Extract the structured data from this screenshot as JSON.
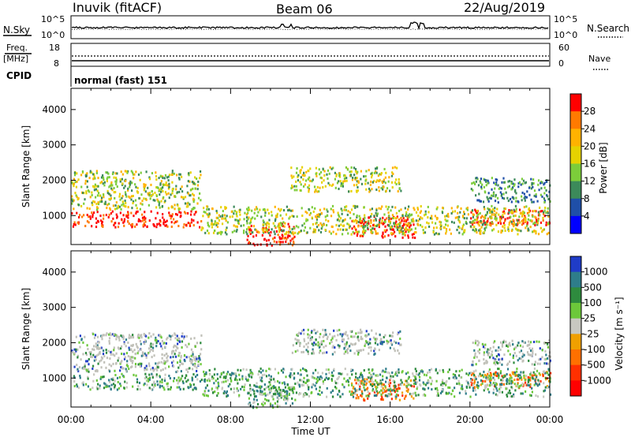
{
  "header": {
    "station": "Inuvik (fitACF)",
    "beam": "Beam 06",
    "date": "22/Aug/2019"
  },
  "strip_labels": {
    "nsky": "N.Sky",
    "nsearch": "N.Search",
    "freq_line1": "Freq.",
    "freq_line2": "[MHz]",
    "nave": "Nave",
    "cpid": "CPID",
    "cpid_value": "normal (fast) 151",
    "noise_ticks_left": [
      "10^5",
      "10^0"
    ],
    "noise_ticks_right": [
      "10^5",
      "10^0"
    ],
    "freq_ticks_left": [
      "18",
      "8"
    ],
    "freq_ticks_right": [
      "60",
      "0"
    ]
  },
  "chart_data": [
    {
      "type": "heatmap",
      "panel": "power",
      "ylabel": "Slant Range [km]",
      "ylim": [
        180,
        4600
      ],
      "yticks": [
        1000,
        2000,
        3000,
        4000
      ],
      "xticks": [
        "00:00",
        "04:00",
        "08:00",
        "12:00",
        "16:00",
        "20:00",
        "00:00"
      ],
      "colorbar": {
        "label": "Power [dB]",
        "ticks": [
          "28",
          "24",
          "20",
          "16",
          "12",
          "8",
          "4"
        ],
        "colors": [
          "#ff0000",
          "#ff7a00",
          "#ffb200",
          "#e6d200",
          "#7ccd3a",
          "#3c8a5a",
          "#1f4fa8",
          "#0000ff"
        ]
      },
      "echo_regions": [
        {
          "t0": 0.0,
          "t1": 6.5,
          "r0": 700,
          "r1": 1150,
          "level": "high"
        },
        {
          "t0": 8.8,
          "t1": 11.2,
          "r0": 180,
          "r1": 800,
          "level": "high"
        },
        {
          "t0": 14.0,
          "t1": 17.2,
          "r0": 400,
          "r1": 1000,
          "level": "high"
        },
        {
          "t0": 20.0,
          "t1": 24.0,
          "r0": 750,
          "r1": 1200,
          "level": "high"
        },
        {
          "t0": 0.0,
          "t1": 6.5,
          "r0": 1200,
          "r1": 2300,
          "level": "mid"
        },
        {
          "t0": 11.0,
          "t1": 16.5,
          "r0": 1700,
          "r1": 2400,
          "level": "mid"
        },
        {
          "t0": 6.5,
          "t1": 24.0,
          "r0": 500,
          "r1": 1300,
          "level": "mid"
        },
        {
          "t0": 20.0,
          "t1": 24.0,
          "r0": 1400,
          "r1": 2100,
          "level": "low"
        }
      ]
    },
    {
      "type": "heatmap",
      "panel": "velocity",
      "ylabel": "Slant Range [km]",
      "ylim": [
        180,
        4600
      ],
      "yticks": [
        1000,
        2000,
        3000,
        4000
      ],
      "xticks": [
        "00:00",
        "04:00",
        "08:00",
        "12:00",
        "16:00",
        "20:00",
        "00:00"
      ],
      "xlabel": "Time UT",
      "colorbar": {
        "label": "Velocity [m s⁻¹]",
        "ticks": [
          "1000",
          "500",
          "100",
          "25",
          "-25",
          "-100",
          "-500",
          "-1000"
        ],
        "colors": [
          "#1f3cc8",
          "#2e7d8a",
          "#2e8b3e",
          "#6cc83a",
          "#c8c8c0",
          "#f0a000",
          "#ff7000",
          "#ff3000",
          "#ff0000"
        ]
      }
    }
  ],
  "colors": {
    "axis": "#000000",
    "background": "#ffffff",
    "ground_scatter": "#c0c0b8"
  }
}
